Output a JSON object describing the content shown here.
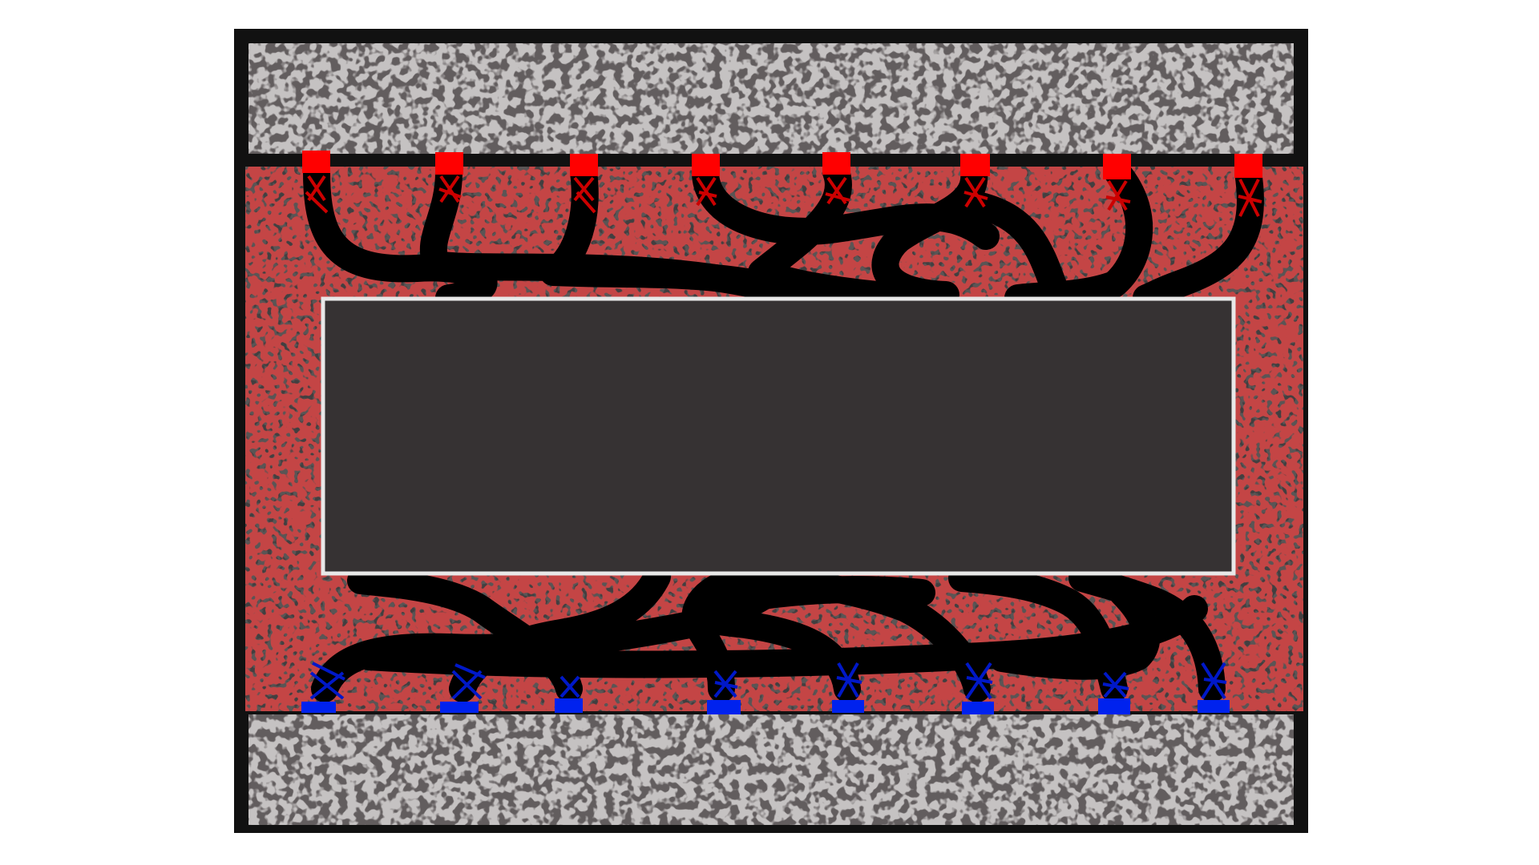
{
  "illustration": {
    "top_connectors": {
      "count": 8,
      "color": "#ff0000",
      "stitch_color": "#cc0000"
    },
    "bottom_connectors": {
      "count": 8,
      "color": "#0022ee",
      "stitch_color": "#0018c8"
    },
    "cables": {
      "color": "#000000"
    }
  },
  "colors": {
    "frame": "#111111",
    "rail": "#625d5e",
    "rail_speckle": "#8a8586",
    "chamber": "#423f40",
    "center_panel": "#363233",
    "center_panel_border": "#e8e8e8",
    "speckle_dark": "#1c1a1b",
    "speckle_red": "#8a1010"
  }
}
